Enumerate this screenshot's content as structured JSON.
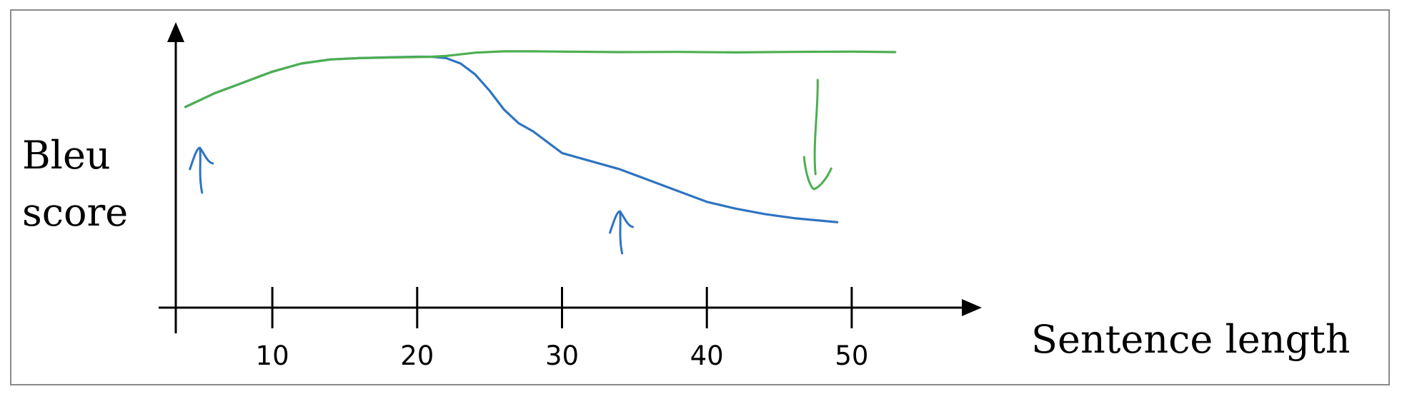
{
  "chart_data": {
    "type": "line",
    "title": "",
    "xlabel": "Sentence length",
    "ylabel_lines": [
      "Bleu",
      "score"
    ],
    "x_ticks": [
      10,
      20,
      30,
      40,
      50
    ],
    "xlim": [
      3,
      57
    ],
    "ylim": [
      0,
      1
    ],
    "grid": false,
    "legend": "none",
    "series": [
      {
        "color": "#2f74c0",
        "x": [
          4,
          6,
          8,
          10,
          12,
          14,
          16,
          18,
          20,
          21,
          22,
          23,
          24,
          25,
          26,
          27,
          28,
          29,
          30,
          32,
          34,
          36,
          38,
          40,
          42,
          44,
          46,
          48,
          49
        ],
        "y": [
          0.74,
          0.79,
          0.83,
          0.87,
          0.9,
          0.915,
          0.92,
          0.923,
          0.925,
          0.925,
          0.92,
          0.9,
          0.86,
          0.8,
          0.73,
          0.68,
          0.65,
          0.61,
          0.57,
          0.54,
          0.51,
          0.47,
          0.43,
          0.39,
          0.365,
          0.345,
          0.33,
          0.32,
          0.315
        ]
      },
      {
        "color": "#4caf50",
        "x": [
          4,
          6,
          8,
          10,
          12,
          14,
          16,
          18,
          20,
          21,
          22,
          24,
          26,
          28,
          30,
          34,
          38,
          42,
          46,
          50,
          53
        ],
        "y": [
          0.74,
          0.79,
          0.83,
          0.87,
          0.9,
          0.915,
          0.92,
          0.922,
          0.924,
          0.925,
          0.928,
          0.94,
          0.945,
          0.945,
          0.944,
          0.942,
          0.943,
          0.941,
          0.943,
          0.944,
          0.942
        ]
      }
    ],
    "annotations": [
      {
        "type": "arrow-up",
        "color": "#2f74c0",
        "at_x": 5
      },
      {
        "type": "arrow-up",
        "color": "#2f74c0",
        "at_x": 34
      },
      {
        "type": "arrow-down",
        "color": "#4caf50",
        "at_x": 47.5
      }
    ]
  }
}
